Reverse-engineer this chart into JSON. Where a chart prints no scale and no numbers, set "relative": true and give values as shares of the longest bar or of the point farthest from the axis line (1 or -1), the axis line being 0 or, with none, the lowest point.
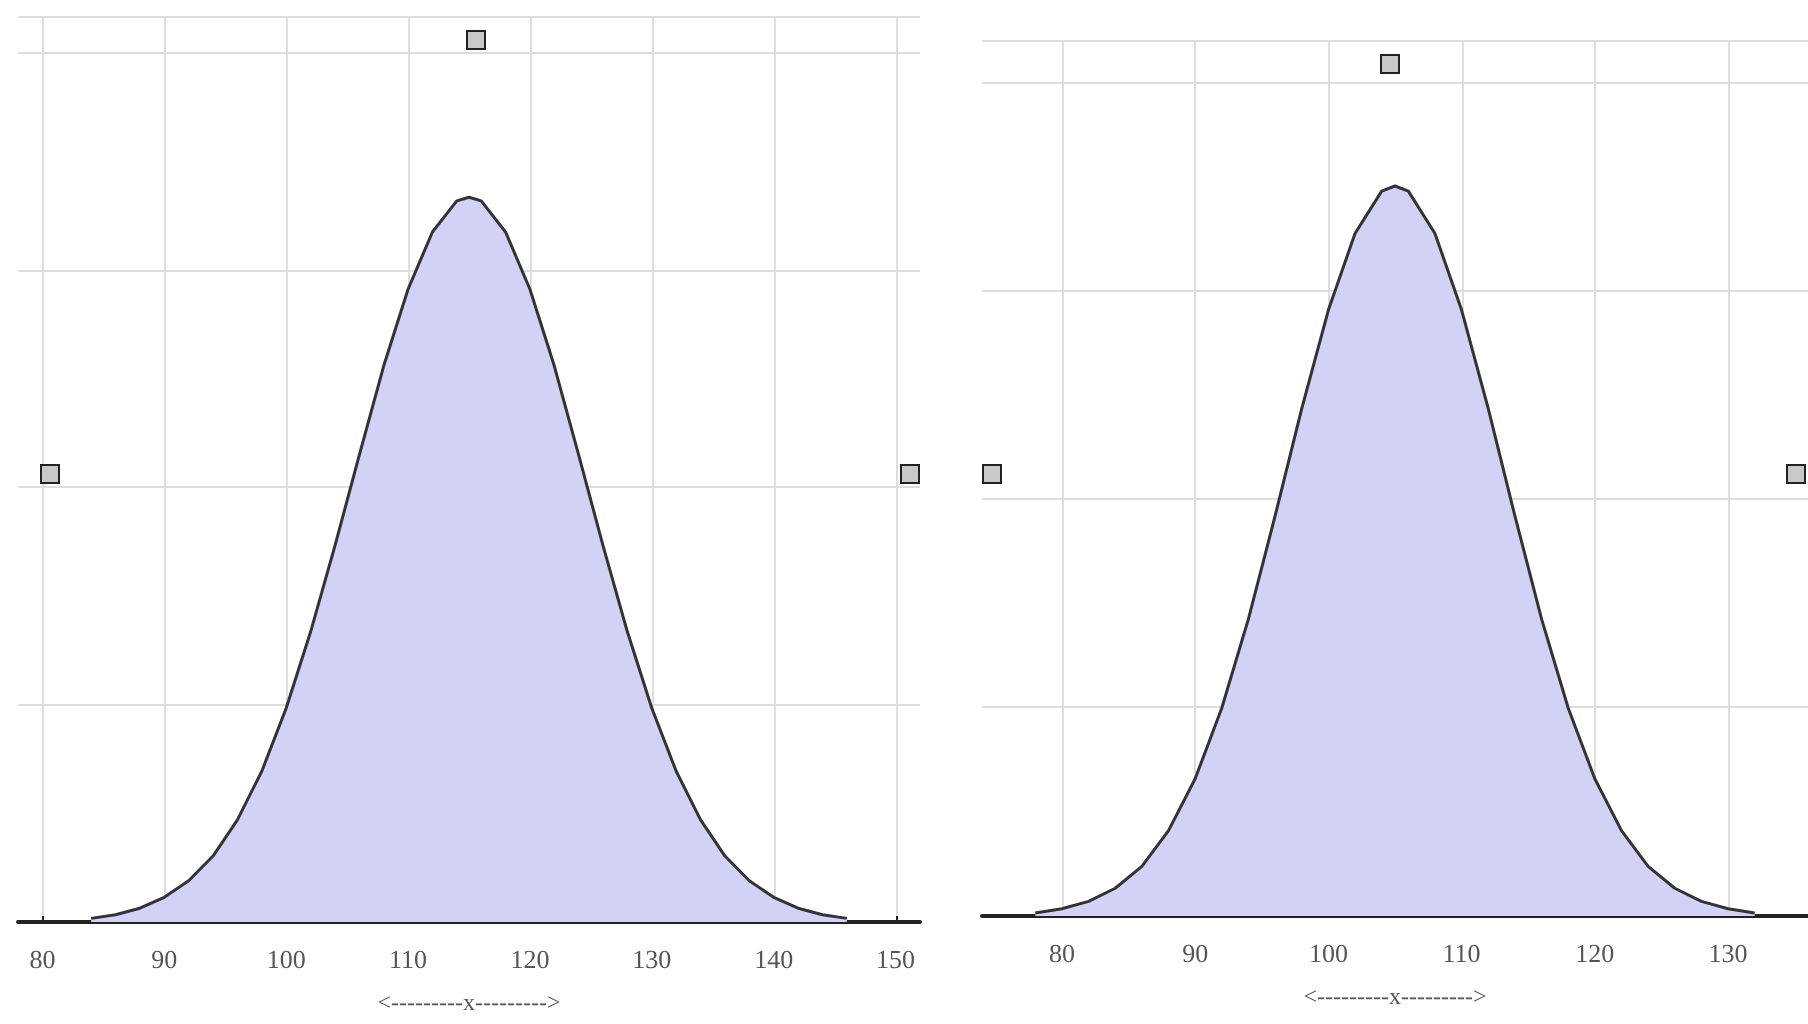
{
  "chart_data": [
    {
      "type": "area",
      "relative": true,
      "xlabel": "<---------x--------->",
      "xlim": [
        78,
        152
      ],
      "xticks": [
        80,
        90,
        100,
        110,
        120,
        130,
        140,
        150
      ],
      "grid": true,
      "x": [
        84,
        86,
        88,
        90,
        92,
        94,
        96,
        98,
        100,
        102,
        104,
        106,
        108,
        110,
        112,
        114,
        115,
        116,
        118,
        120,
        122,
        124,
        126,
        128,
        130,
        132,
        134,
        136,
        138,
        140,
        142,
        144,
        146
      ],
      "series": [
        {
          "color": "#d2d2f7",
          "values": [
            0.005,
            0.01,
            0.019,
            0.034,
            0.057,
            0.091,
            0.141,
            0.208,
            0.295,
            0.4,
            0.519,
            0.644,
            0.767,
            0.873,
            0.952,
            0.995,
            1,
            0.995,
            0.952,
            0.873,
            0.767,
            0.644,
            0.519,
            0.4,
            0.295,
            0.208,
            0.141,
            0.091,
            0.057,
            0.034,
            0.019,
            0.01,
            0.005
          ]
        }
      ]
    },
    {
      "type": "area",
      "relative": true,
      "xlabel": "<---------x--------->",
      "xlim": [
        74,
        136
      ],
      "xticks": [
        80,
        90,
        100,
        110,
        120,
        130
      ],
      "grid": true,
      "x": [
        78,
        80,
        82,
        84,
        86,
        88,
        90,
        92,
        94,
        96,
        98,
        100,
        102,
        104,
        105,
        106,
        108,
        110,
        112,
        114,
        116,
        118,
        120,
        122,
        124,
        126,
        128,
        130,
        132
      ],
      "series": [
        {
          "color": "#d2d2f7",
          "values": [
            0.004,
            0.01,
            0.02,
            0.038,
            0.068,
            0.117,
            0.188,
            0.285,
            0.407,
            0.548,
            0.695,
            0.83,
            0.935,
            0.993,
            1,
            0.993,
            0.935,
            0.83,
            0.695,
            0.548,
            0.407,
            0.285,
            0.188,
            0.117,
            0.068,
            0.038,
            0.02,
            0.01,
            0.004
          ]
        }
      ]
    }
  ]
}
